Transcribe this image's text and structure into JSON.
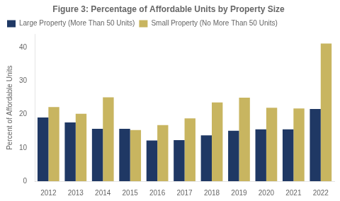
{
  "chart_data": {
    "type": "bar",
    "title": "Figure 3: Percentage of Affordable Units by Property Size",
    "y_label": "Percent of Affordable Units",
    "categories": [
      "2012",
      "2013",
      "2014",
      "2015",
      "2016",
      "2017",
      "2018",
      "2019",
      "2020",
      "2021",
      "2022"
    ],
    "series": [
      {
        "name": "Large Property (More Than 50 Units)",
        "color": "#1f3864",
        "values": [
          19.1,
          17.6,
          15.7,
          15.7,
          12.2,
          12.3,
          13.7,
          15.1,
          15.5,
          15.5,
          21.6
        ]
      },
      {
        "name": "Small Property (No More Than 50 Units)",
        "color": "#c8b560",
        "values": [
          22.2,
          20.2,
          25.1,
          15.3,
          16.8,
          18.8,
          23.6,
          25.0,
          22.0,
          21.8,
          41.2
        ]
      }
    ],
    "ylim": [
      0,
      44
    ],
    "yticks": [
      0,
      10,
      20,
      30,
      40
    ],
    "grid": false,
    "legend": "upper left"
  }
}
